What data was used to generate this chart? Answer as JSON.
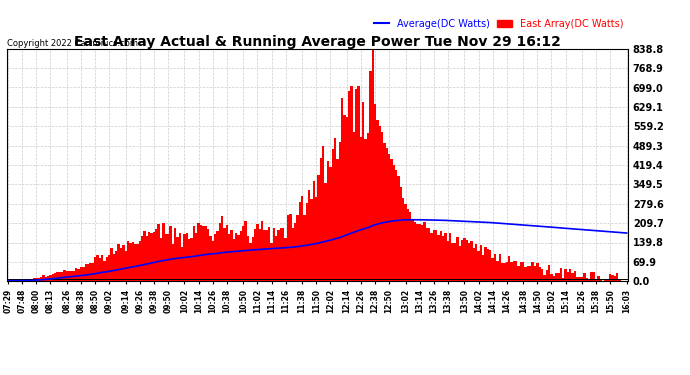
{
  "title": "East Array Actual & Running Average Power Tue Nov 29 16:12",
  "copyright": "Copyright 2022 Cartronics.com",
  "legend_avg": "Average(DC Watts)",
  "legend_east": "East Array(DC Watts)",
  "yticks": [
    0.0,
    69.9,
    139.8,
    209.7,
    279.6,
    349.5,
    419.4,
    489.3,
    559.2,
    629.1,
    699.0,
    768.9,
    838.8
  ],
  "ymax": 838.8,
  "ymin": 0.0,
  "bg_color": "#ffffff",
  "grid_color": "#cccccc",
  "bar_color": "#ff0000",
  "avg_line_color": "#0000ff",
  "black_line_color": "#000000",
  "title_color": "#000000",
  "copyright_color": "#000000",
  "legend_avg_color": "#0000ff",
  "legend_east_color": "#ff0000",
  "time_labels": [
    "07:29",
    "07:48",
    "08:00",
    "08:13",
    "08:26",
    "08:38",
    "08:50",
    "09:02",
    "09:14",
    "09:26",
    "09:38",
    "09:50",
    "10:02",
    "10:14",
    "10:26",
    "10:38",
    "10:50",
    "11:02",
    "11:14",
    "11:26",
    "11:38",
    "11:50",
    "12:02",
    "12:14",
    "12:26",
    "12:38",
    "12:50",
    "13:02",
    "13:14",
    "13:26",
    "13:38",
    "13:50",
    "14:02",
    "14:14",
    "14:26",
    "14:38",
    "14:50",
    "15:02",
    "15:14",
    "15:26",
    "15:38",
    "15:50",
    "16:03"
  ],
  "power": [
    2,
    3,
    1,
    2,
    3,
    2,
    1,
    3,
    4,
    5,
    8,
    10,
    12,
    15,
    18,
    20,
    18,
    22,
    25,
    28,
    30,
    28,
    32,
    35,
    38,
    40,
    42,
    38,
    45,
    50,
    55,
    52,
    60,
    65,
    70,
    68,
    75,
    80,
    85,
    90,
    88,
    95,
    100,
    105,
    110,
    108,
    115,
    120,
    125,
    130,
    128,
    135,
    140,
    145,
    150,
    148,
    155,
    160,
    165,
    170,
    168,
    175,
    180,
    185,
    190,
    188,
    195,
    200,
    160,
    170,
    150,
    160,
    155,
    165,
    170,
    175,
    180,
    185,
    190,
    195,
    200,
    210,
    160,
    170,
    175,
    180,
    185,
    190,
    195,
    200,
    210,
    160,
    170,
    175,
    180,
    185,
    190,
    195,
    200,
    210,
    160,
    170,
    175,
    180,
    185,
    190,
    195,
    200,
    210,
    160,
    170,
    175,
    180,
    185,
    190,
    195,
    200,
    210,
    220,
    230,
    240,
    250,
    260,
    270,
    280,
    300,
    320,
    340,
    360,
    380,
    400,
    420,
    440,
    460,
    480,
    500,
    520,
    540,
    560,
    580,
    600,
    620,
    640,
    660,
    640,
    620,
    600,
    580,
    560,
    580,
    600,
    620,
    640,
    660,
    640,
    620,
    600,
    580,
    560,
    580,
    760,
    838,
    640,
    560,
    520,
    480,
    440,
    400,
    380,
    360,
    340,
    320,
    300,
    280,
    260,
    240,
    220,
    200,
    180,
    160,
    140,
    120,
    100,
    80,
    70,
    60,
    55,
    50,
    48,
    45,
    42,
    40,
    38,
    35,
    32,
    30,
    28,
    25,
    22,
    20,
    18,
    15,
    12,
    10,
    8,
    6,
    5,
    4,
    3,
    2,
    1,
    30,
    35,
    40,
    45,
    50,
    45,
    40,
    35,
    30,
    25,
    20,
    15,
    10,
    8,
    6,
    5,
    4,
    3,
    2,
    1,
    25,
    20,
    15,
    10,
    8,
    6,
    5,
    4,
    3,
    2,
    1,
    2,
    3,
    2,
    1,
    2,
    3,
    2,
    1,
    2,
    3,
    2,
    1,
    2,
    3,
    1
  ]
}
